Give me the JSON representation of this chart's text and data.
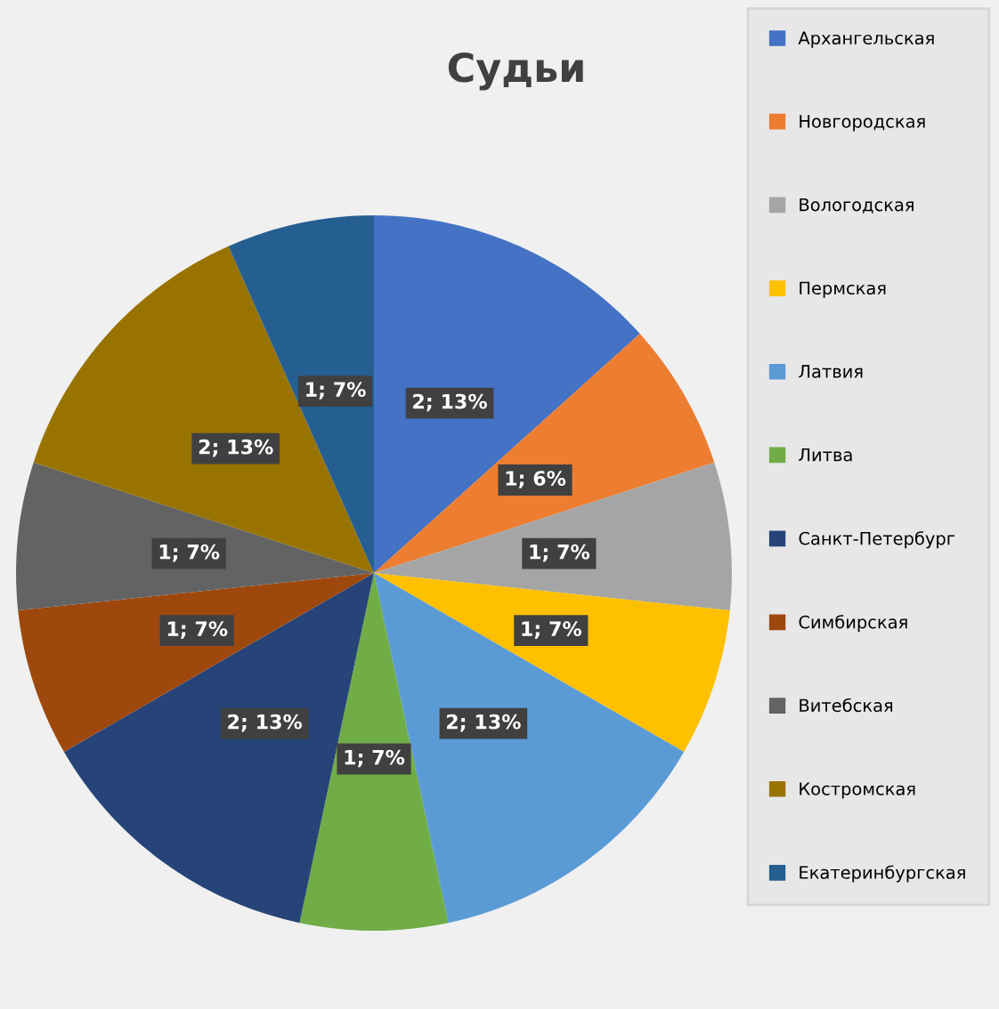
{
  "chart_data": {
    "type": "pie",
    "title": "Судьи",
    "categories": [
      "Архангельская",
      "Новгородская",
      "Вологодская",
      "Пермская",
      "Латвия",
      "Литва",
      "Санкт-Петербург",
      "Симбирская",
      "Витебская",
      "Костромская",
      "Екатеринбургская"
    ],
    "values": [
      2,
      1,
      1,
      1,
      2,
      1,
      2,
      1,
      1,
      2,
      1
    ],
    "value_labels": [
      "2; 13%",
      "1; 6%",
      "1; 7%",
      "1; 7%",
      "2; 13%",
      "1; 7%",
      "2; 13%",
      "1; 7%",
      "1; 7%",
      "2; 13%",
      "1; 7%"
    ],
    "colors": [
      "#4472c4",
      "#ed7d31",
      "#a5a5a5",
      "#ffc000",
      "#5b9bd5",
      "#70ad47",
      "#264478",
      "#9e480e",
      "#636363",
      "#997300",
      "#255e91"
    ],
    "legend": "right"
  }
}
